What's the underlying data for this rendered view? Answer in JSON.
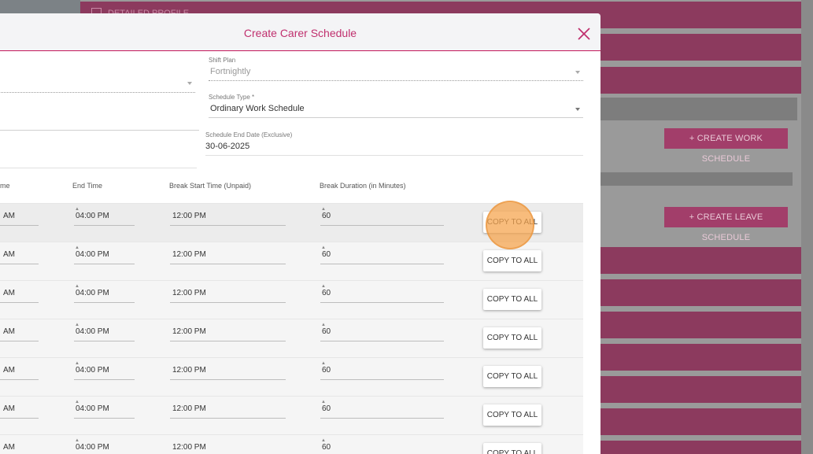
{
  "background": {
    "profile_label": "DETAILED PROFILE",
    "create_work_schedule_button": "+ CREATE WORK SCHEDULE",
    "create_leave_schedule_button": "+ CREATE LEAVE SCHEDULE"
  },
  "modal": {
    "title": "Create Carer Schedule",
    "shift_plan": {
      "label": "Shift Plan",
      "value": "Fortnightly"
    },
    "schedule_type": {
      "label": "Schedule Type *",
      "value": "Ordinary Work Schedule"
    },
    "schedule_end_date": {
      "label": "Schedule End Date (Exclusive)",
      "value": "30-06-2025"
    },
    "columns": {
      "start_time_partial": "me",
      "end_time": "End Time",
      "break_start_time": "Break Start Time (Unpaid)",
      "break_duration": "Break Duration (in Minutes)"
    },
    "rows": [
      {
        "start": "AM",
        "end": "04:00 PM",
        "break_start": "12:00 PM",
        "duration": "60",
        "action": "COPY TO ALL"
      },
      {
        "start": "AM",
        "end": "04:00 PM",
        "break_start": "12:00 PM",
        "duration": "60",
        "action": "COPY TO ALL"
      },
      {
        "start": "AM",
        "end": "04:00 PM",
        "break_start": "12:00 PM",
        "duration": "60",
        "action": "COPY TO ALL"
      },
      {
        "start": "AM",
        "end": "04:00 PM",
        "break_start": "12:00 PM",
        "duration": "60",
        "action": "COPY TO ALL"
      },
      {
        "start": "AM",
        "end": "04:00 PM",
        "break_start": "12:00 PM",
        "duration": "60",
        "action": "COPY TO ALL"
      },
      {
        "start": "AM",
        "end": "04:00 PM",
        "break_start": "12:00 PM",
        "duration": "60",
        "action": "COPY TO ALL"
      },
      {
        "start": "AM",
        "end": "04:00 PM",
        "break_start": "12:00 PM",
        "duration": "60",
        "action": "COPY TO ALL"
      }
    ]
  },
  "colors": {
    "accent": "#c0306e",
    "background_bar": "#8c3a5e",
    "click_indicator": "#f5a650"
  }
}
